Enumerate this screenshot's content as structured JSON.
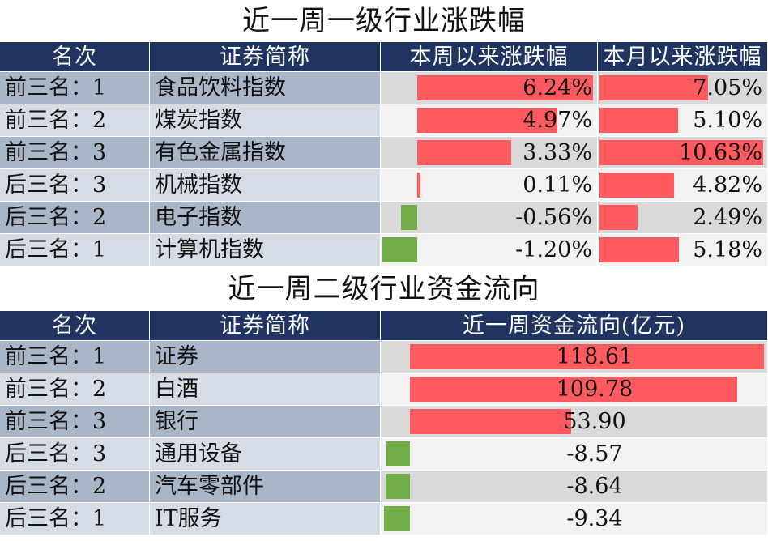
{
  "table1": {
    "title": "近一周一级行业涨跌幅",
    "headers": [
      "名次",
      "证券简称",
      "本周以来涨跌幅",
      "本月以来涨跌幅"
    ],
    "rows": [
      {
        "rank": "前三名：1",
        "name": "食品饮料指数",
        "week": 6.24,
        "week_label": "6.24%",
        "month": 7.05,
        "month_label": "7.05%"
      },
      {
        "rank": "前三名：2",
        "name": "煤炭指数",
        "week": 4.97,
        "week_label": "4.97%",
        "month": 5.1,
        "month_label": "5.10%"
      },
      {
        "rank": "前三名：3",
        "name": "有色金属指数",
        "week": 3.33,
        "week_label": "3.33%",
        "month": 10.63,
        "month_label": "10.63%"
      },
      {
        "rank": "后三名：3",
        "name": "机械指数",
        "week": 0.11,
        "week_label": "0.11%",
        "month": 4.82,
        "month_label": "4.82%"
      },
      {
        "rank": "后三名：2",
        "name": "电子指数",
        "week": -0.56,
        "week_label": "-0.56%",
        "month": 2.49,
        "month_label": "2.49%"
      },
      {
        "rank": "后三名：1",
        "name": "计算机指数",
        "week": -1.2,
        "week_label": "-1.20%",
        "month": 5.18,
        "month_label": "5.18%"
      }
    ]
  },
  "table2": {
    "title": "近一周二级行业资金流向",
    "headers": [
      "名次",
      "证券简称",
      "近一周资金流向(亿元)"
    ],
    "rows": [
      {
        "rank": "前三名：1",
        "name": "证券",
        "flow": 118.61,
        "flow_label": "118.61"
      },
      {
        "rank": "前三名：2",
        "name": "白酒",
        "flow": 109.78,
        "flow_label": "109.78"
      },
      {
        "rank": "前三名：3",
        "name": "银行",
        "flow": 53.9,
        "flow_label": "53.90"
      },
      {
        "rank": "后三名：3",
        "name": "通用设备",
        "flow": -8.57,
        "flow_label": "-8.57"
      },
      {
        "rank": "后三名：2",
        "name": "汽车零部件",
        "flow": -8.64,
        "flow_label": "-8.64"
      },
      {
        "rank": "后三名：1",
        "name": "IT服务",
        "flow": -9.34,
        "flow_label": "-9.34"
      }
    ]
  },
  "colors": {
    "header_bg": "#1f3460",
    "positive_bar": "#ff5a5f",
    "negative_bar": "#70ad47"
  }
}
